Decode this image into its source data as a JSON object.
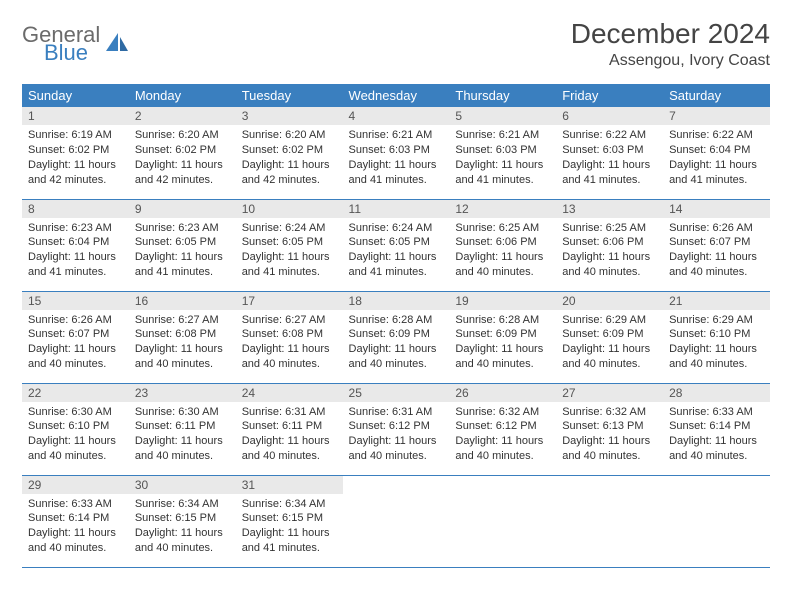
{
  "logo": {
    "word1": "General",
    "word2": "Blue"
  },
  "title": "December 2024",
  "location": "Assengou, Ivory Coast",
  "theme": {
    "header_bg": "#3a7fbf",
    "header_fg": "#ffffff",
    "daynum_bg": "#e9e9e9",
    "row_border": "#3a7fbf",
    "text_color": "#333333",
    "logo_gray": "#6b6b6b",
    "logo_blue": "#3a7fbf",
    "title_color": "#444444",
    "month_title_fontsize": 28,
    "location_fontsize": 16,
    "dayheader_fontsize": 13,
    "daynum_fontsize": 12,
    "body_fontsize": 11
  },
  "day_headers": [
    "Sunday",
    "Monday",
    "Tuesday",
    "Wednesday",
    "Thursday",
    "Friday",
    "Saturday"
  ],
  "weeks": [
    [
      {
        "n": "1",
        "sr": "6:19 AM",
        "ss": "6:02 PM",
        "dl": "11 hours and 42 minutes."
      },
      {
        "n": "2",
        "sr": "6:20 AM",
        "ss": "6:02 PM",
        "dl": "11 hours and 42 minutes."
      },
      {
        "n": "3",
        "sr": "6:20 AM",
        "ss": "6:02 PM",
        "dl": "11 hours and 42 minutes."
      },
      {
        "n": "4",
        "sr": "6:21 AM",
        "ss": "6:03 PM",
        "dl": "11 hours and 41 minutes."
      },
      {
        "n": "5",
        "sr": "6:21 AM",
        "ss": "6:03 PM",
        "dl": "11 hours and 41 minutes."
      },
      {
        "n": "6",
        "sr": "6:22 AM",
        "ss": "6:03 PM",
        "dl": "11 hours and 41 minutes."
      },
      {
        "n": "7",
        "sr": "6:22 AM",
        "ss": "6:04 PM",
        "dl": "11 hours and 41 minutes."
      }
    ],
    [
      {
        "n": "8",
        "sr": "6:23 AM",
        "ss": "6:04 PM",
        "dl": "11 hours and 41 minutes."
      },
      {
        "n": "9",
        "sr": "6:23 AM",
        "ss": "6:05 PM",
        "dl": "11 hours and 41 minutes."
      },
      {
        "n": "10",
        "sr": "6:24 AM",
        "ss": "6:05 PM",
        "dl": "11 hours and 41 minutes."
      },
      {
        "n": "11",
        "sr": "6:24 AM",
        "ss": "6:05 PM",
        "dl": "11 hours and 41 minutes."
      },
      {
        "n": "12",
        "sr": "6:25 AM",
        "ss": "6:06 PM",
        "dl": "11 hours and 40 minutes."
      },
      {
        "n": "13",
        "sr": "6:25 AM",
        "ss": "6:06 PM",
        "dl": "11 hours and 40 minutes."
      },
      {
        "n": "14",
        "sr": "6:26 AM",
        "ss": "6:07 PM",
        "dl": "11 hours and 40 minutes."
      }
    ],
    [
      {
        "n": "15",
        "sr": "6:26 AM",
        "ss": "6:07 PM",
        "dl": "11 hours and 40 minutes."
      },
      {
        "n": "16",
        "sr": "6:27 AM",
        "ss": "6:08 PM",
        "dl": "11 hours and 40 minutes."
      },
      {
        "n": "17",
        "sr": "6:27 AM",
        "ss": "6:08 PM",
        "dl": "11 hours and 40 minutes."
      },
      {
        "n": "18",
        "sr": "6:28 AM",
        "ss": "6:09 PM",
        "dl": "11 hours and 40 minutes."
      },
      {
        "n": "19",
        "sr": "6:28 AM",
        "ss": "6:09 PM",
        "dl": "11 hours and 40 minutes."
      },
      {
        "n": "20",
        "sr": "6:29 AM",
        "ss": "6:09 PM",
        "dl": "11 hours and 40 minutes."
      },
      {
        "n": "21",
        "sr": "6:29 AM",
        "ss": "6:10 PM",
        "dl": "11 hours and 40 minutes."
      }
    ],
    [
      {
        "n": "22",
        "sr": "6:30 AM",
        "ss": "6:10 PM",
        "dl": "11 hours and 40 minutes."
      },
      {
        "n": "23",
        "sr": "6:30 AM",
        "ss": "6:11 PM",
        "dl": "11 hours and 40 minutes."
      },
      {
        "n": "24",
        "sr": "6:31 AM",
        "ss": "6:11 PM",
        "dl": "11 hours and 40 minutes."
      },
      {
        "n": "25",
        "sr": "6:31 AM",
        "ss": "6:12 PM",
        "dl": "11 hours and 40 minutes."
      },
      {
        "n": "26",
        "sr": "6:32 AM",
        "ss": "6:12 PM",
        "dl": "11 hours and 40 minutes."
      },
      {
        "n": "27",
        "sr": "6:32 AM",
        "ss": "6:13 PM",
        "dl": "11 hours and 40 minutes."
      },
      {
        "n": "28",
        "sr": "6:33 AM",
        "ss": "6:14 PM",
        "dl": "11 hours and 40 minutes."
      }
    ],
    [
      {
        "n": "29",
        "sr": "6:33 AM",
        "ss": "6:14 PM",
        "dl": "11 hours and 40 minutes."
      },
      {
        "n": "30",
        "sr": "6:34 AM",
        "ss": "6:15 PM",
        "dl": "11 hours and 40 minutes."
      },
      {
        "n": "31",
        "sr": "6:34 AM",
        "ss": "6:15 PM",
        "dl": "11 hours and 41 minutes."
      },
      null,
      null,
      null,
      null
    ]
  ],
  "labels": {
    "sunrise": "Sunrise:",
    "sunset": "Sunset:",
    "daylight": "Daylight:"
  }
}
